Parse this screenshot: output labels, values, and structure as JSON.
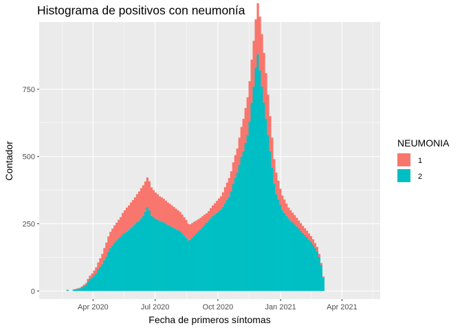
{
  "chart_data": {
    "type": "bar",
    "stacked": true,
    "title": "Histograma de positivos con neumonía",
    "xlabel": "Fecha de primeros síntomas",
    "ylabel": "Contador",
    "x_domain": [
      "2020-01-13",
      "2021-05-27"
    ],
    "x_ticks": [
      {
        "date": "2020-04-01",
        "label": "Apr 2020"
      },
      {
        "date": "2020-07-01",
        "label": "Jul 2020"
      },
      {
        "date": "2020-10-01",
        "label": "Oct 2020"
      },
      {
        "date": "2021-01-01",
        "label": "Jan 2021"
      },
      {
        "date": "2021-04-01",
        "label": "Apr 2021"
      }
    ],
    "ylim": [
      -30,
      1000
    ],
    "y_ticks": [
      0,
      250,
      500,
      750
    ],
    "grid": true,
    "legend": {
      "title": "NEUMONIA",
      "position": "right"
    },
    "bin_width_days": 3,
    "bin_start": "2020-02-22",
    "series": [
      {
        "name": "1",
        "color": "#F8766D",
        "values": [
          2,
          0,
          0,
          1,
          2,
          2,
          2,
          3,
          5,
          7,
          10,
          12,
          15,
          18,
          22,
          26,
          32,
          38,
          45,
          52,
          58,
          60,
          62,
          64,
          66,
          70,
          75,
          80,
          85,
          90,
          92,
          95,
          98,
          100,
          105,
          110,
          112,
          115,
          112,
          110,
          108,
          105,
          100,
          98,
          95,
          92,
          90,
          88,
          86,
          84,
          82,
          80,
          78,
          76,
          74,
          72,
          70,
          68,
          66,
          62,
          58,
          55,
          52,
          48,
          45,
          42,
          40,
          38,
          35,
          35,
          38,
          40,
          42,
          45,
          48,
          50,
          55,
          60,
          65,
          70,
          75,
          80,
          85,
          90,
          100,
          110,
          120,
          130,
          140,
          150,
          160,
          170,
          180,
          190,
          200,
          195,
          185,
          170,
          150,
          130,
          110,
          90,
          80,
          70,
          60,
          55,
          50,
          45,
          40,
          38,
          36,
          34,
          32,
          30,
          28,
          26,
          25,
          24,
          24,
          22,
          20,
          18,
          16,
          12,
          8,
          4
        ]
      },
      {
        "name": "2",
        "color": "#00BFC4",
        "values": [
          3,
          0,
          0,
          5,
          6,
          8,
          10,
          14,
          18,
          22,
          35,
          45,
          50,
          58,
          66,
          80,
          90,
          100,
          115,
          128,
          145,
          160,
          170,
          180,
          188,
          195,
          200,
          210,
          215,
          220,
          226,
          234,
          240,
          248,
          255,
          260,
          270,
          278,
          295,
          312,
          300,
          280,
          275,
          268,
          265,
          260,
          258,
          255,
          250,
          245,
          242,
          238,
          234,
          230,
          226,
          222,
          214,
          206,
          198,
          188,
          190,
          198,
          206,
          214,
          222,
          230,
          238,
          246,
          254,
          262,
          270,
          278,
          284,
          290,
          296,
          302,
          312,
          326,
          338,
          350,
          370,
          398,
          420,
          440,
          470,
          500,
          520,
          550,
          580,
          630,
          700,
          760,
          830,
          880,
          820,
          760,
          700,
          640,
          580,
          520,
          460,
          400,
          360,
          340,
          320,
          300,
          290,
          280,
          270,
          262,
          255,
          248,
          240,
          232,
          224,
          216,
          208,
          200,
          190,
          182,
          172,
          160,
          148,
          126,
          96,
          50
        ]
      }
    ]
  }
}
